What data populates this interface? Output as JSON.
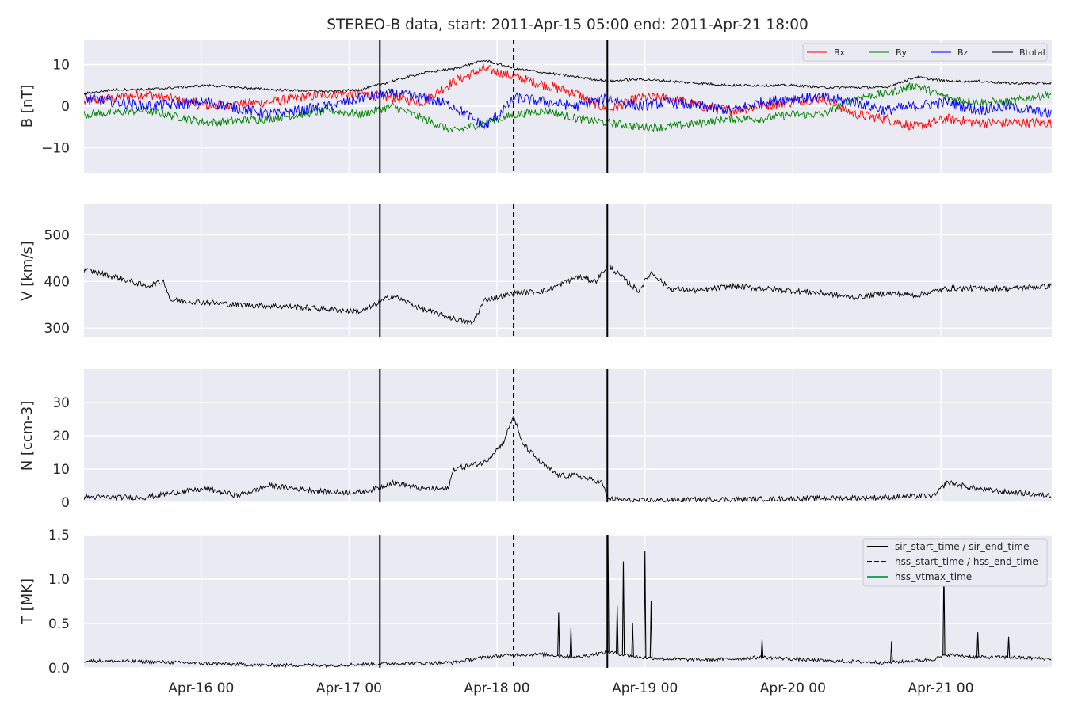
{
  "figure": {
    "title": "STEREO-B data, start: 2011-Apr-15 05:00  end: 2011-Apr-21 18:00",
    "x_range_hours": [
      0,
      157
    ],
    "x_ticks": [
      {
        "label": "Apr-16 00",
        "hours": 19
      },
      {
        "label": "Apr-17 00",
        "hours": 43
      },
      {
        "label": "Apr-18 00",
        "hours": 67
      },
      {
        "label": "Apr-19 00",
        "hours": 91
      },
      {
        "label": "Apr-20 00",
        "hours": 115
      },
      {
        "label": "Apr-21 00",
        "hours": 139
      }
    ],
    "event_lines": [
      {
        "name": "sir_start_time",
        "hours": 48.0,
        "style": "solid"
      },
      {
        "name": "hss_start_time",
        "hours": 69.7,
        "style": "dashed"
      },
      {
        "name": "sir_end_time",
        "hours": 84.9,
        "style": "solid"
      }
    ],
    "colors": {
      "panel_bg": "#eaeaf2",
      "grid": "#ffffff",
      "Bx": "#ff0000",
      "By": "#008000",
      "Bz": "#0000ff",
      "Btotal": "#000000",
      "vtmax": "#2ca25f"
    }
  },
  "chart_data": [
    {
      "type": "line",
      "ylabel": "B [nT]",
      "ylim": [
        -16,
        16
      ],
      "yticks": [
        {
          "v": 10,
          "label": "10"
        },
        {
          "v": 0,
          "label": "0"
        },
        {
          "v": -10,
          "label": "−10"
        }
      ],
      "legend": {
        "placement": "top-right",
        "entries": [
          "Bx",
          "By",
          "Bz",
          "Btotal"
        ]
      },
      "series": [
        {
          "name": "Bx",
          "color": "#ff0000",
          "noise": 1.2,
          "x": [
            0,
            10,
            20,
            30,
            40,
            45,
            50,
            55,
            60,
            65,
            70,
            75,
            80,
            85,
            90,
            95,
            100,
            105,
            110,
            115,
            120,
            125,
            130,
            135,
            140,
            145,
            150,
            157
          ],
          "y": [
            1,
            3,
            0,
            1,
            3,
            3,
            2,
            1,
            6,
            9,
            7,
            5,
            3,
            -1,
            2,
            2,
            0,
            -1,
            0,
            1,
            2,
            -2,
            -3,
            -5,
            -3,
            -4,
            -4,
            -4
          ]
        },
        {
          "name": "By",
          "color": "#008000",
          "noise": 1.0,
          "x": [
            0,
            10,
            20,
            30,
            40,
            45,
            50,
            55,
            60,
            65,
            70,
            75,
            80,
            85,
            90,
            95,
            100,
            105,
            110,
            115,
            120,
            125,
            130,
            135,
            140,
            145,
            150,
            157
          ],
          "y": [
            -2,
            -1,
            -4,
            -3,
            -1,
            -2,
            0,
            -3,
            -6,
            -4,
            -2,
            -1,
            -3,
            -4,
            -5,
            -5,
            -4,
            -3,
            -3,
            -2,
            -2,
            2,
            3,
            5,
            2,
            1,
            1,
            3
          ]
        },
        {
          "name": "Bz",
          "color": "#0000ff",
          "noise": 1.3,
          "x": [
            0,
            10,
            20,
            30,
            40,
            45,
            50,
            55,
            60,
            65,
            70,
            75,
            80,
            85,
            90,
            95,
            100,
            105,
            110,
            115,
            120,
            125,
            130,
            135,
            140,
            145,
            150,
            157
          ],
          "y": [
            2,
            0,
            1,
            -2,
            0,
            2,
            3,
            2,
            0,
            -5,
            2,
            1,
            0,
            2,
            0,
            1,
            0,
            -1,
            1,
            2,
            2,
            1,
            -1,
            0,
            1,
            -1,
            0,
            -2
          ]
        },
        {
          "name": "Btotal",
          "color": "#000000",
          "noise": 0.3,
          "x": [
            0,
            5,
            10,
            20,
            30,
            40,
            45,
            50,
            55,
            60,
            65,
            70,
            75,
            80,
            85,
            90,
            95,
            100,
            105,
            110,
            115,
            120,
            125,
            130,
            135,
            140,
            145,
            150,
            157
          ],
          "y": [
            3,
            4,
            4,
            5,
            4,
            3.5,
            4,
            6,
            8,
            9,
            11,
            9,
            8,
            7,
            6,
            6.5,
            6,
            5.5,
            5,
            5,
            5,
            4.5,
            4.5,
            4.5,
            7,
            6,
            6,
            5.5,
            5.5
          ]
        }
      ]
    },
    {
      "type": "line",
      "ylabel": "V [km/s]",
      "ylim": [
        280,
        565
      ],
      "yticks": [
        {
          "v": 500,
          "label": "500"
        },
        {
          "v": 400,
          "label": "400"
        },
        {
          "v": 300,
          "label": "300"
        }
      ],
      "series": [
        {
          "color": "#000000",
          "noise": 6,
          "x": [
            0,
            5,
            10,
            13,
            14,
            20,
            25,
            30,
            35,
            40,
            45,
            48,
            50,
            55,
            60,
            63,
            65,
            70,
            75,
            80,
            83,
            85,
            88,
            90,
            92,
            95,
            100,
            105,
            110,
            115,
            120,
            125,
            130,
            135,
            140,
            145,
            150,
            157
          ],
          "y": [
            425,
            410,
            390,
            400,
            360,
            355,
            350,
            348,
            345,
            340,
            335,
            355,
            370,
            340,
            320,
            310,
            360,
            375,
            380,
            410,
            400,
            435,
            400,
            380,
            420,
            385,
            380,
            390,
            385,
            380,
            375,
            365,
            375,
            370,
            385,
            385,
            385,
            390
          ]
        }
      ]
    },
    {
      "type": "line",
      "ylabel": "N [ccm-3]",
      "ylim": [
        0,
        40
      ],
      "yticks": [
        {
          "v": 30,
          "label": "30"
        },
        {
          "v": 20,
          "label": "20"
        },
        {
          "v": 10,
          "label": "10"
        },
        {
          "v": 0,
          "label": "0"
        }
      ],
      "series": [
        {
          "color": "#000000",
          "noise": 0.8,
          "x": [
            0,
            10,
            15,
            20,
            25,
            30,
            35,
            40,
            45,
            48,
            50,
            55,
            59,
            60,
            65,
            68,
            69.7,
            71,
            74,
            77,
            80,
            84,
            85,
            90,
            100,
            110,
            120,
            130,
            138,
            140,
            145,
            150,
            157
          ],
          "y": [
            1.5,
            1.5,
            3,
            4,
            2,
            5,
            4,
            3,
            3,
            4.5,
            6,
            4,
            4,
            10,
            12,
            18,
            26,
            18,
            12,
            8,
            8,
            6,
            1,
            0.5,
            0.8,
            1,
            1.2,
            1.5,
            2,
            6,
            4,
            3,
            2
          ]
        }
      ]
    },
    {
      "type": "line",
      "ylabel": "T [MK]",
      "ylim": [
        0,
        1.5
      ],
      "yticks": [
        {
          "v": 1.5,
          "label": "1.5"
        },
        {
          "v": 1.0,
          "label": "1.0"
        },
        {
          "v": 0.5,
          "label": "0.5"
        },
        {
          "v": 0.0,
          "label": "0.0"
        }
      ],
      "legend": {
        "placement": "top-right",
        "entries": [
          {
            "label": "sir_start_time / sir_end_time",
            "style": "solid",
            "color": "#000000"
          },
          {
            "label": "hss_start_time / hss_end_time",
            "style": "dashed",
            "color": "#000000"
          },
          {
            "label": "hss_vtmax_time",
            "style": "solid",
            "color": "#2ca25f"
          }
        ]
      },
      "series": [
        {
          "color": "#000000",
          "noise": 0.02,
          "x": [
            0,
            10,
            20,
            30,
            40,
            45,
            50,
            60,
            65,
            70,
            75,
            80,
            85,
            90,
            95,
            100,
            105,
            110,
            115,
            120,
            125,
            130,
            135,
            138,
            140,
            145,
            150,
            157
          ],
          "y": [
            0.08,
            0.07,
            0.05,
            0.03,
            0.03,
            0.04,
            0.05,
            0.06,
            0.12,
            0.15,
            0.15,
            0.12,
            0.18,
            0.12,
            0.1,
            0.09,
            0.1,
            0.12,
            0.1,
            0.08,
            0.07,
            0.06,
            0.08,
            0.1,
            0.15,
            0.12,
            0.12,
            0.1
          ]
        }
      ],
      "spikes": [
        {
          "x": 77,
          "y": 0.62
        },
        {
          "x": 79,
          "y": 0.45
        },
        {
          "x": 85,
          "y": 1.5
        },
        {
          "x": 86.5,
          "y": 0.7
        },
        {
          "x": 87.5,
          "y": 1.2
        },
        {
          "x": 89,
          "y": 0.5
        },
        {
          "x": 91,
          "y": 1.32
        },
        {
          "x": 92,
          "y": 0.75
        },
        {
          "x": 110,
          "y": 0.32
        },
        {
          "x": 131,
          "y": 0.3
        },
        {
          "x": 139.5,
          "y": 1.15
        },
        {
          "x": 145,
          "y": 0.4
        },
        {
          "x": 150,
          "y": 0.35
        }
      ]
    }
  ]
}
